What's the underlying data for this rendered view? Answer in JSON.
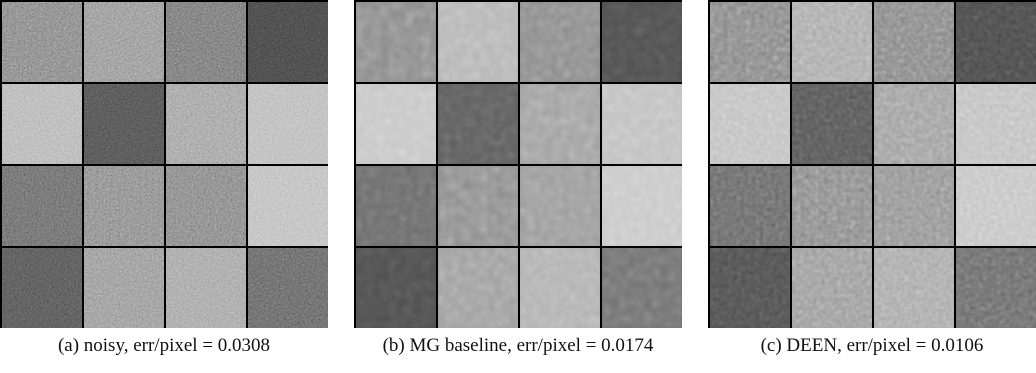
{
  "figure": {
    "panels": [
      {
        "caption": "(a) noisy, err/pixel = 0.0308",
        "style": "noisy",
        "tiles": [
          {
            "tone": "#8a8a8a"
          },
          {
            "tone": "#9a9a9a"
          },
          {
            "tone": "#7a7a7a"
          },
          {
            "tone": "#4a4a4a"
          },
          {
            "tone": "#b8b8b8"
          },
          {
            "tone": "#555555"
          },
          {
            "tone": "#a5a5a5"
          },
          {
            "tone": "#bdbdbd"
          },
          {
            "tone": "#6f6f6f"
          },
          {
            "tone": "#8f8f8f"
          },
          {
            "tone": "#8a8a8a"
          },
          {
            "tone": "#c0c0c0"
          },
          {
            "tone": "#5a5a5a"
          },
          {
            "tone": "#9c9c9c"
          },
          {
            "tone": "#a8a8a8"
          },
          {
            "tone": "#6a6a6a"
          }
        ]
      },
      {
        "caption": "(b) MG baseline, err/pixel = 0.0174",
        "style": "blurred",
        "tiles": [
          {
            "tone": "#8a8a8a"
          },
          {
            "tone": "#b5b5b5"
          },
          {
            "tone": "#8a8a8a"
          },
          {
            "tone": "#4f4f4f"
          },
          {
            "tone": "#c6c6c6"
          },
          {
            "tone": "#5d5d5d"
          },
          {
            "tone": "#a0a0a0"
          },
          {
            "tone": "#c0c0c0"
          },
          {
            "tone": "#6a6a6a"
          },
          {
            "tone": "#8e8e8e"
          },
          {
            "tone": "#9a9a9a"
          },
          {
            "tone": "#c8c8c8"
          },
          {
            "tone": "#4e4e4e"
          },
          {
            "tone": "#9e9e9e"
          },
          {
            "tone": "#b0b0b0"
          },
          {
            "tone": "#707070"
          }
        ]
      },
      {
        "caption": "(c) DEEN, err/pixel = 0.0106",
        "style": "denoised",
        "tiles": [
          {
            "tone": "#8a8a8a"
          },
          {
            "tone": "#adadad"
          },
          {
            "tone": "#8a8a8a"
          },
          {
            "tone": "#4d4d4d"
          },
          {
            "tone": "#c2c2c2"
          },
          {
            "tone": "#5a5a5a"
          },
          {
            "tone": "#a2a2a2"
          },
          {
            "tone": "#c2c2c2"
          },
          {
            "tone": "#6c6c6c"
          },
          {
            "tone": "#8e8e8e"
          },
          {
            "tone": "#969696"
          },
          {
            "tone": "#c6c6c6"
          },
          {
            "tone": "#525252"
          },
          {
            "tone": "#9e9e9e"
          },
          {
            "tone": "#ababab"
          },
          {
            "tone": "#6e6e6e"
          }
        ]
      }
    ]
  }
}
